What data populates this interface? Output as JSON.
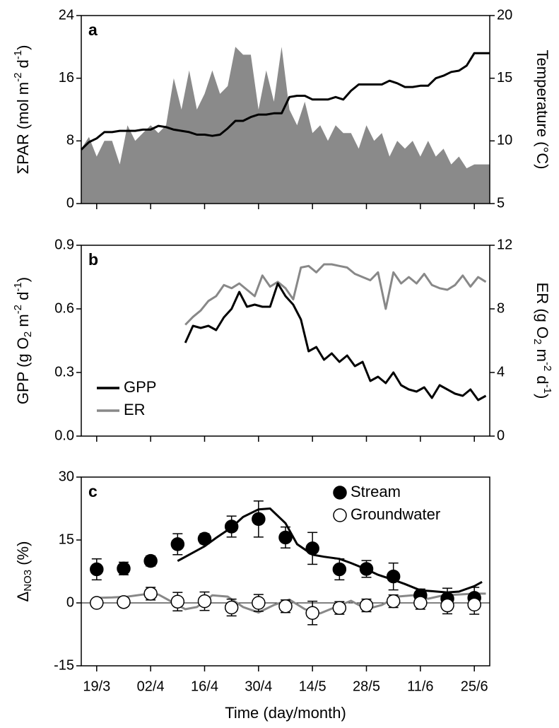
{
  "chart_data": [
    {
      "type": "area",
      "title": "a",
      "x": [
        74,
        76,
        78,
        80,
        82,
        84,
        86,
        88,
        90,
        92,
        94,
        96,
        98,
        100,
        102,
        104,
        106,
        108,
        110,
        112,
        114,
        116,
        118,
        120,
        122,
        124,
        126,
        128,
        130,
        132,
        134,
        136,
        138,
        140,
        142,
        144,
        146,
        148,
        150,
        152,
        154,
        156,
        158,
        160,
        162,
        164,
        166,
        168,
        170,
        172,
        174,
        176,
        178,
        180
      ],
      "xlim": [
        74,
        180
      ],
      "ylim": [
        0,
        24
      ],
      "yticks": [
        0,
        8,
        16,
        24
      ],
      "ylabel": [
        {
          "text": "ΣPAR (mol m",
          "script": "normal"
        },
        {
          "text": "-2",
          "script": "sup"
        },
        {
          "text": " d",
          "script": "normal"
        },
        {
          "text": "-1",
          "script": "sup"
        },
        {
          "text": ")",
          "script": "normal"
        }
      ],
      "y2lim": [
        5,
        20
      ],
      "y2ticks": [
        5,
        10,
        15,
        20
      ],
      "y2label": [
        {
          "text": "Temperature (°C)",
          "script": "normal"
        }
      ],
      "series": [
        {
          "color": "#8a8a8a",
          "values": [
            7,
            8.5,
            6,
            8,
            8,
            5,
            10,
            8,
            9,
            10,
            9,
            10,
            16,
            12,
            17,
            12,
            14,
            17,
            14,
            15,
            20,
            19,
            19,
            12,
            17,
            13,
            20,
            12,
            10,
            13,
            9,
            10,
            8,
            10,
            9,
            9,
            7,
            10,
            8,
            9,
            6,
            8,
            7,
            8,
            6,
            8,
            6,
            7,
            5,
            6,
            4.5,
            5,
            5,
            5
          ]
        },
        {
          "color": "#000000",
          "type": "line",
          "axis": "y2",
          "values": [
            9.3,
            9.9,
            10.2,
            10.7,
            10.7,
            10.8,
            10.8,
            10.8,
            10.9,
            10.9,
            11.2,
            11.1,
            10.9,
            10.8,
            10.7,
            10.5,
            10.5,
            10.4,
            10.5,
            11.0,
            11.6,
            11.6,
            11.9,
            12.1,
            12.1,
            12.2,
            12.2,
            13.5,
            13.6,
            13.6,
            13.3,
            13.3,
            13.3,
            13.5,
            13.3,
            14.0,
            14.5,
            14.5,
            14.5,
            14.5,
            14.8,
            14.6,
            14.3,
            14.3,
            14.4,
            14.4,
            15.0,
            15.2,
            15.5,
            15.6,
            16.0,
            17.0,
            17.0,
            17.0
          ]
        }
      ]
    },
    {
      "type": "line",
      "title": "b",
      "x": [
        101,
        103,
        105,
        107,
        109,
        111,
        113,
        115,
        117,
        119,
        121,
        123,
        125,
        127,
        129,
        131,
        133,
        135,
        137,
        139,
        141,
        143,
        145,
        147,
        149,
        151,
        153,
        155,
        157,
        159,
        161,
        163,
        165,
        167,
        169,
        171,
        173,
        175,
        177,
        179
      ],
      "xlim": [
        74,
        180
      ],
      "ylim": [
        0,
        0.9
      ],
      "yticks": [
        {
          "value": 0,
          "label": "0.0"
        },
        0.3,
        0.6,
        0.9
      ],
      "ylabel": [
        {
          "text": "GPP (g O",
          "script": "normal"
        },
        {
          "text": "2",
          "script": "sub"
        },
        {
          "text": " m",
          "script": "normal"
        },
        {
          "text": "-2",
          "script": "sup"
        },
        {
          "text": " d",
          "script": "normal"
        },
        {
          "text": "-1",
          "script": "sup"
        },
        {
          "text": ")",
          "script": "normal"
        }
      ],
      "y2lim": [
        0,
        12
      ],
      "y2ticks": [
        0,
        4,
        8,
        12
      ],
      "y2label": [
        {
          "text": "ER (g O",
          "script": "normal"
        },
        {
          "text": "2",
          "script": "sub"
        },
        {
          "text": " m",
          "script": "normal"
        },
        {
          "text": "-2",
          "script": "sup"
        },
        {
          "text": " d",
          "script": "normal"
        },
        {
          "text": "-1",
          "script": "sup"
        },
        {
          "text": ")",
          "script": "normal"
        }
      ],
      "legend": "lower left",
      "series": [
        {
          "name": "GPP",
          "color": "#000000",
          "values": [
            0.44,
            0.52,
            0.51,
            0.52,
            0.5,
            0.56,
            0.6,
            0.68,
            0.61,
            0.62,
            0.61,
            0.61,
            0.72,
            0.66,
            0.62,
            0.55,
            0.4,
            0.42,
            0.36,
            0.39,
            0.35,
            0.38,
            0.33,
            0.35,
            0.26,
            0.28,
            0.25,
            0.3,
            0.24,
            0.22,
            0.21,
            0.23,
            0.18,
            0.24,
            0.22,
            0.2,
            0.19,
            0.22,
            0.17,
            0.19
          ]
        },
        {
          "name": "ER",
          "color": "#888888",
          "axis": "y2",
          "values": [
            7.0,
            7.5,
            7.9,
            8.5,
            8.8,
            9.5,
            9.3,
            9.6,
            9.2,
            8.8,
            10.1,
            9.4,
            9.7,
            9.3,
            8.6,
            10.6,
            10.7,
            10.3,
            10.8,
            10.8,
            10.7,
            10.6,
            10.2,
            10.0,
            9.8,
            10.3,
            8.0,
            10.3,
            9.6,
            10.0,
            9.6,
            10.2,
            9.5,
            9.3,
            9.2,
            9.5,
            10.1,
            9.4,
            10.0,
            9.7
          ]
        }
      ]
    },
    {
      "type": "scatter",
      "title": "c",
      "x": [
        78,
        85,
        92,
        99,
        106,
        113,
        120,
        127,
        134,
        141,
        148,
        155,
        162,
        169,
        176
      ],
      "xlim": [
        74,
        180
      ],
      "xticks": [
        {
          "value": 78,
          "label": "19/3"
        },
        {
          "value": 92,
          "label": "02/4"
        },
        {
          "value": 106,
          "label": "16/4"
        },
        {
          "value": 120,
          "label": "30/4"
        },
        {
          "value": 134,
          "label": "14/5"
        },
        {
          "value": 148,
          "label": "28/5"
        },
        {
          "value": 162,
          "label": "11/6"
        },
        {
          "value": 176,
          "label": "25/6"
        }
      ],
      "xlabel": "Time (day/month)",
      "ylim": [
        -15,
        30
      ],
      "yticks": [
        -15,
        0,
        15,
        30
      ],
      "ylabel": [
        {
          "text": "Δ",
          "script": "normal"
        },
        {
          "text": "NO3",
          "script": "sub"
        },
        {
          "text": " (%)",
          "script": "normal"
        }
      ],
      "zero_line": true,
      "legend": "upper right",
      "series": [
        {
          "name": "Stream",
          "color": "#000000",
          "fill": "#000000",
          "values": [
            8,
            8.2,
            10,
            14,
            15.3,
            18.2,
            20,
            15.6,
            13,
            8,
            8.1,
            6.3,
            1.8,
            1,
            1.2
          ],
          "errors": [
            2.5,
            1.5,
            1.2,
            2.5,
            1.2,
            2.5,
            4.3,
            2.5,
            3.8,
            2.5,
            2,
            3.2,
            1.5,
            2.5,
            2.5
          ]
        },
        {
          "name": "Groundwater",
          "color": "#000000",
          "fill": "#ffffff",
          "values": [
            0,
            0.2,
            2.2,
            0.3,
            0.4,
            -1.1,
            0,
            -0.8,
            -2.4,
            -1.2,
            -0.6,
            0.4,
            0,
            -0.6,
            -0.4
          ],
          "errors": [
            0.8,
            0.8,
            1.5,
            2.2,
            2.2,
            2,
            2,
            1.5,
            2.8,
            1.5,
            1.5,
            1.5,
            1.5,
            2,
            2.3
          ]
        }
      ],
      "fit_lines": [
        {
          "color": "#000000",
          "x": [
            99,
            102,
            106,
            109,
            113,
            116,
            120,
            123,
            127,
            130,
            134,
            137,
            141,
            144,
            148,
            151,
            155,
            158,
            162,
            165,
            169,
            172,
            176,
            178
          ],
          "values": [
            10,
            11.5,
            13.5,
            15.5,
            18,
            20.5,
            22.3,
            22.5,
            19,
            14,
            11.5,
            11,
            10.5,
            9.5,
            8,
            6.7,
            5.5,
            4.5,
            3,
            2.8,
            2.5,
            2.7,
            4,
            5
          ]
        },
        {
          "color": "#888888",
          "x": [
            78,
            82,
            86,
            90,
            94,
            98,
            101,
            104,
            108,
            112,
            116,
            120,
            124,
            128,
            132,
            136,
            140,
            144,
            148,
            152,
            156,
            160,
            164,
            168,
            172,
            176,
            179
          ],
          "values": [
            1.2,
            1.3,
            1.5,
            2,
            2,
            0,
            -1.5,
            -1,
            1.8,
            1.5,
            -1,
            -2.3,
            -0.5,
            0.8,
            -1.5,
            -2.5,
            -1,
            0.5,
            -1.5,
            -0.5,
            1.5,
            1.8,
            1,
            1.8,
            2,
            2.2,
            2.2
          ]
        }
      ]
    }
  ]
}
